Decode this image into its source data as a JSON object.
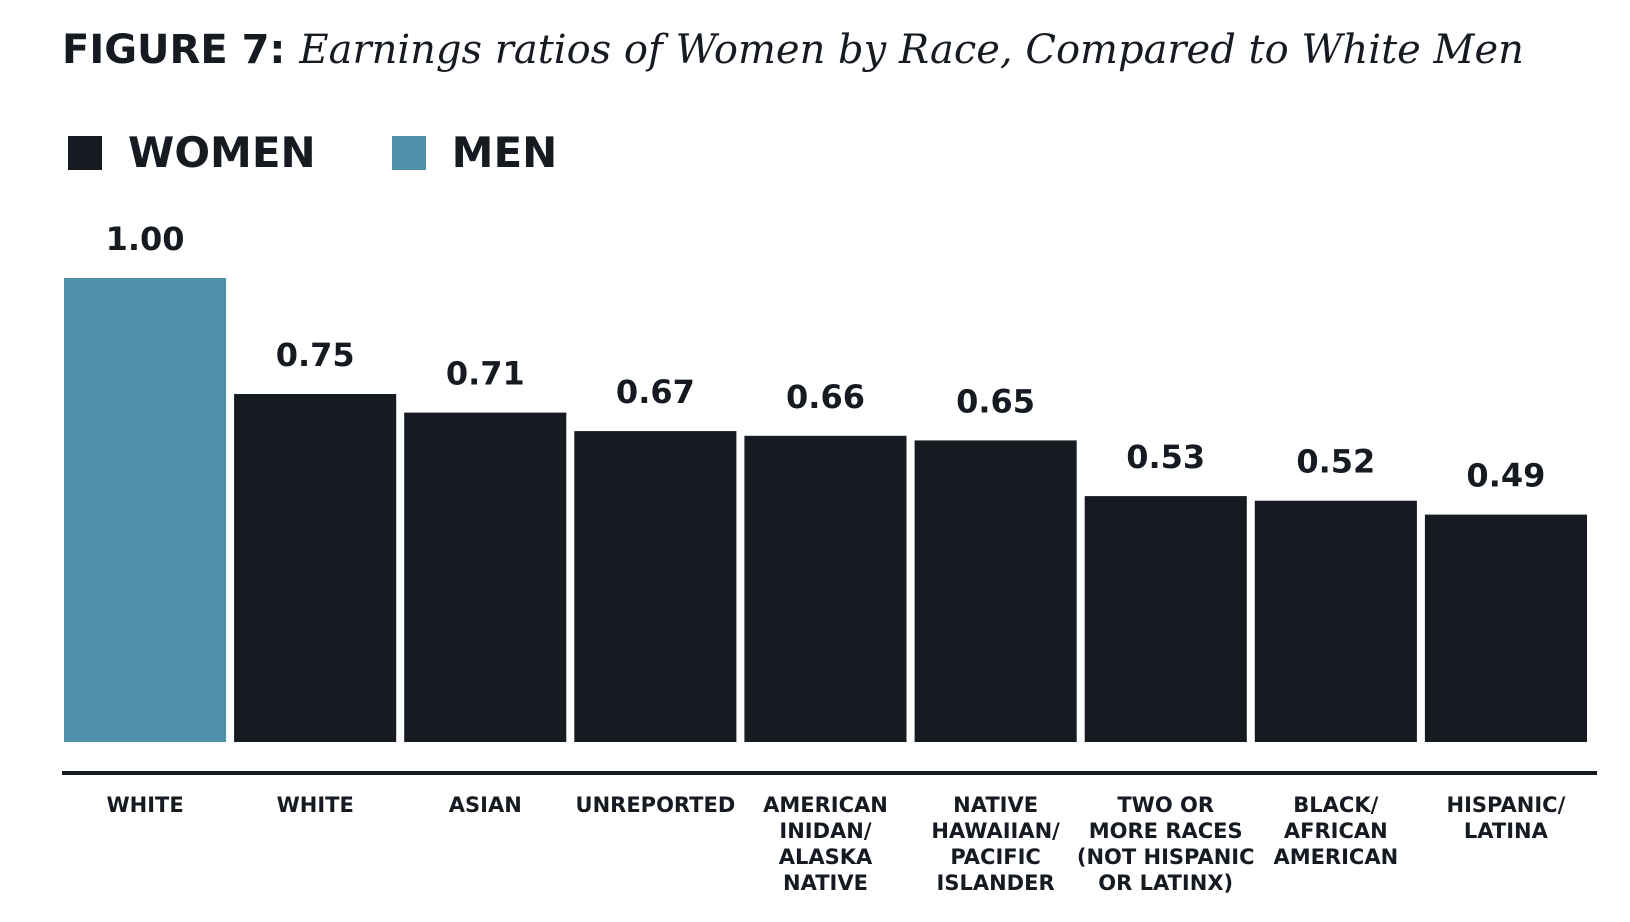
{
  "header": {
    "figure_label": "FIGURE 7:",
    "title": "Earnings ratios of Women by Race, Compared to White Men"
  },
  "legend": {
    "items": [
      {
        "label": "WOMEN",
        "color": "#161b22"
      },
      {
        "label": "MEN",
        "color": "#4e91a8"
      }
    ],
    "placement": "top-left"
  },
  "colors": {
    "women": "#161b22",
    "men": "#4e91a8",
    "text": "#161b22",
    "axis": "#161b22"
  },
  "chart_data": {
    "type": "bar",
    "title": "Earnings ratios of Women by Race, Compared to White Men",
    "xlabel": "",
    "ylabel": "",
    "ylim": [
      0,
      1.0
    ],
    "grid": false,
    "legend": "top-left",
    "categories": [
      [
        "WHITE"
      ],
      [
        "WHITE"
      ],
      [
        "ASIAN"
      ],
      [
        "UNREPORTED"
      ],
      [
        "AMERICAN",
        "INIDAN/",
        "ALASKA",
        "NATIVE"
      ],
      [
        "NATIVE",
        "HAWAIIAN/",
        "PACIFIC",
        "ISLANDER"
      ],
      [
        "TWO OR",
        "MORE RACES",
        "(NOT HISPANIC",
        "OR LATINX)"
      ],
      [
        "BLACK/",
        "AFRICAN",
        "AMERICAN"
      ],
      [
        "HISPANIC/",
        "LATINA"
      ]
    ],
    "series": [
      {
        "name": "MEN",
        "color": "#4e91a8",
        "values": [
          1.0,
          null,
          null,
          null,
          null,
          null,
          null,
          null,
          null
        ]
      },
      {
        "name": "WOMEN",
        "color": "#161b22",
        "values": [
          null,
          0.75,
          0.71,
          0.67,
          0.66,
          0.65,
          0.53,
          0.52,
          0.49
        ]
      }
    ],
    "data_labels": [
      "1.00",
      "0.75",
      "0.71",
      "0.67",
      "0.66",
      "0.65",
      "0.53",
      "0.52",
      "0.49"
    ]
  }
}
